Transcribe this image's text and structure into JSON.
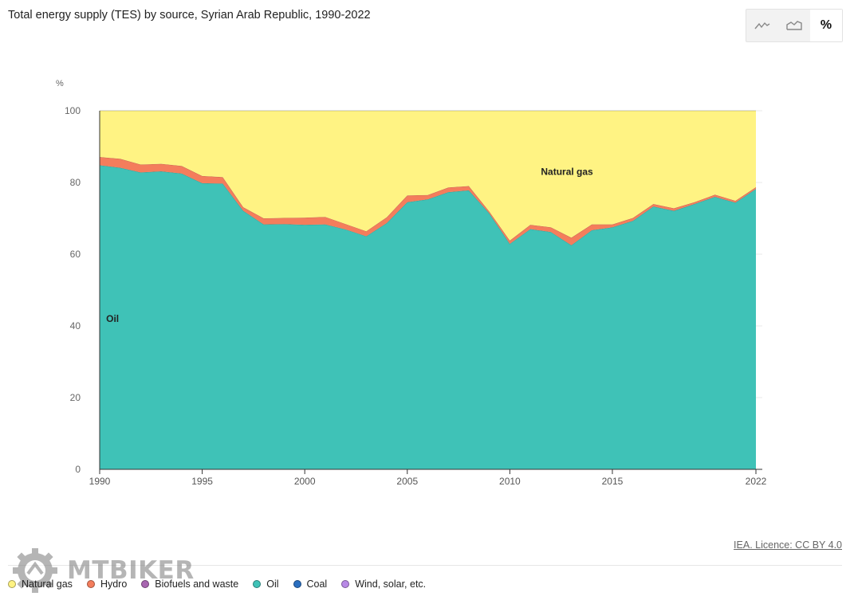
{
  "title": "Total energy supply (TES) by source, Syrian Arab Republic, 1990-2022",
  "view_toggle": {
    "buttons": [
      {
        "icon": "line-chart-icon",
        "label": ""
      },
      {
        "icon": "area-chart-icon",
        "label": ""
      },
      {
        "icon": "percent-icon",
        "label": "%"
      }
    ],
    "active": 2
  },
  "source": "IEA. Licence: CC BY 4.0",
  "watermark": "MTBIKER",
  "legend": [
    {
      "label": "Natural gas",
      "color": "#fff383"
    },
    {
      "label": "Hydro",
      "color": "#f47d5c"
    },
    {
      "label": "Biofuels and waste",
      "color": "#a865b0"
    },
    {
      "label": "Oil",
      "color": "#3fc2b7"
    },
    {
      "label": "Coal",
      "color": "#2a6ebf"
    },
    {
      "label": "Wind, solar, etc.",
      "color": "#b889e6"
    }
  ],
  "chart_data": {
    "type": "area",
    "stacked": true,
    "normalized": true,
    "ylabel": "%",
    "ylim": [
      0,
      100
    ],
    "yticks": [
      0,
      20,
      40,
      60,
      80,
      100
    ],
    "xticks": [
      1990,
      1995,
      2000,
      2005,
      2010,
      2015,
      2022
    ],
    "x": [
      1990,
      1991,
      1992,
      1993,
      1994,
      1995,
      1996,
      1997,
      1998,
      1999,
      2000,
      2001,
      2002,
      2003,
      2004,
      2005,
      2006,
      2007,
      2008,
      2009,
      2010,
      2011,
      2012,
      2013,
      2014,
      2015,
      2016,
      2017,
      2018,
      2019,
      2020,
      2021,
      2022
    ],
    "series": [
      {
        "name": "Oil",
        "color": "#3fc2b7",
        "values": [
          84.8,
          84.1,
          82.8,
          83.1,
          82.5,
          79.8,
          79.7,
          72.1,
          68.3,
          68.4,
          68.2,
          68.3,
          66.9,
          65.0,
          68.7,
          74.5,
          75.3,
          77.3,
          77.8,
          71.4,
          62.9,
          67.0,
          66.2,
          62.5,
          66.7,
          67.5,
          69.3,
          73.3,
          72.1,
          74.0,
          76.0,
          74.4,
          78.2
        ]
      },
      {
        "name": "Hydro",
        "color": "#f47d5c",
        "values": [
          2.3,
          2.5,
          2.2,
          2.1,
          2.1,
          2.0,
          1.8,
          1.0,
          1.7,
          1.7,
          2.0,
          2.1,
          1.5,
          1.4,
          1.6,
          1.9,
          1.2,
          1.3,
          1.2,
          0.5,
          0.9,
          1.2,
          1.3,
          2.1,
          1.6,
          0.8,
          0.8,
          0.7,
          0.7,
          0.5,
          0.6,
          0.5,
          0.5
        ]
      },
      {
        "name": "Natural gas",
        "color": "#fff383",
        "values": [
          12.9,
          13.4,
          15.0,
          14.8,
          15.4,
          18.2,
          18.5,
          26.9,
          30.0,
          29.9,
          29.8,
          29.6,
          31.6,
          33.6,
          29.7,
          23.6,
          23.5,
          21.4,
          21.0,
          28.1,
          36.2,
          31.8,
          32.5,
          35.4,
          31.7,
          31.7,
          29.9,
          26.0,
          27.2,
          25.5,
          23.4,
          25.1,
          21.3
        ]
      }
    ],
    "annotations": [
      {
        "text": "Oil",
        "x": 1990.2,
        "y": 42
      },
      {
        "text": "Natural gas",
        "x": 2011.4,
        "y": 83
      }
    ]
  }
}
